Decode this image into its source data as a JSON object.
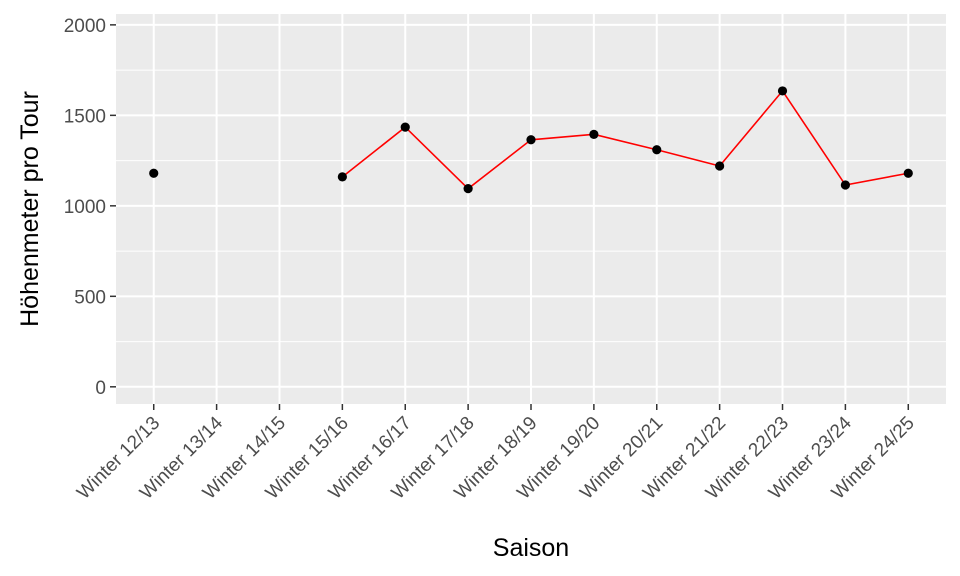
{
  "chart_data": {
    "type": "line",
    "title": "",
    "xlabel": "Saison",
    "ylabel": "Höhenmeter pro Tour",
    "categories": [
      "Winter 12/13",
      "Winter 13/14",
      "Winter 14/15",
      "Winter 15/16",
      "Winter 16/17",
      "Winter 17/18",
      "Winter 18/19",
      "Winter 19/20",
      "Winter 20/21",
      "Winter 21/22",
      "Winter 22/23",
      "Winter 23/24",
      "Winter 24/25"
    ],
    "values": [
      1180,
      null,
      null,
      1160,
      1435,
      1095,
      1365,
      1395,
      1310,
      1220,
      1635,
      1115,
      1180
    ],
    "ylim": [
      -95,
      2060
    ],
    "yticks": [
      0,
      500,
      1000,
      1500,
      2000
    ],
    "grid": true,
    "colors": {
      "panel": "#ebebeb",
      "grid": "#ffffff",
      "line": "#ff0000",
      "point": "#000000"
    }
  }
}
